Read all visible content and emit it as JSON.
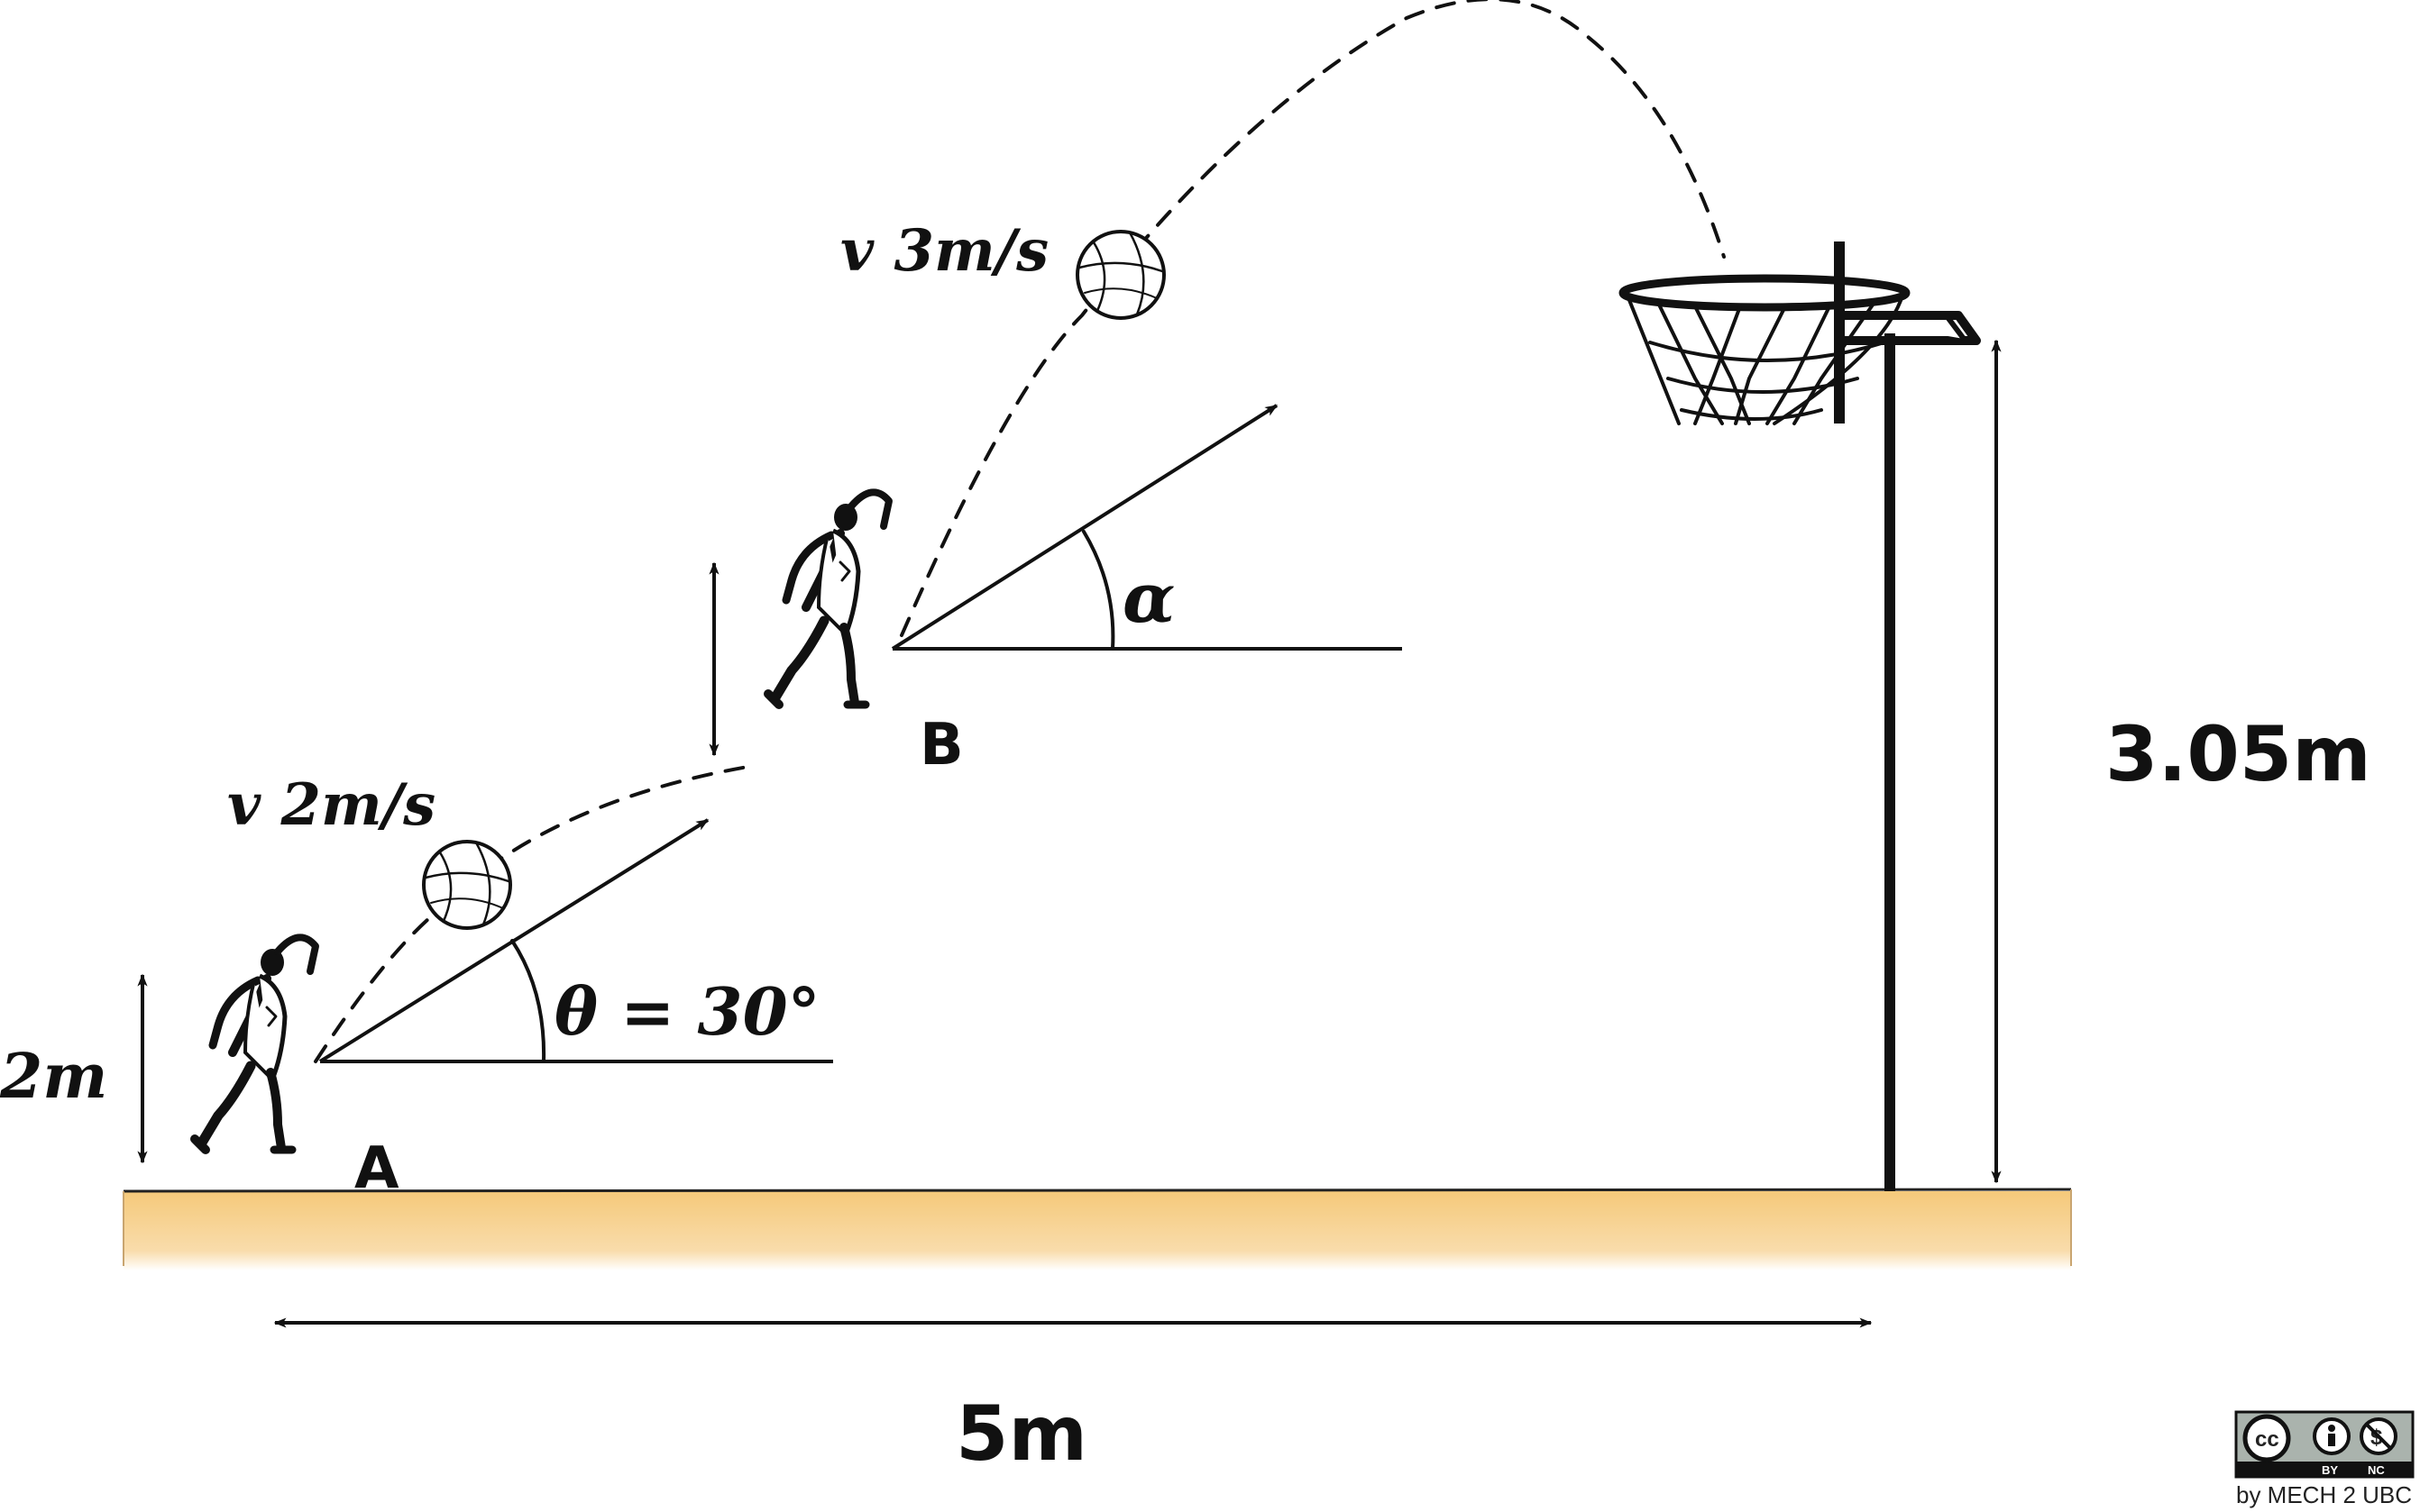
{
  "labels": {
    "height_a": "2m",
    "point_a": "A",
    "point_b": "B",
    "velocity_a": "v 2m/s",
    "velocity_b": "v 3m/s",
    "theta": "θ = 30°",
    "alpha": "α",
    "hoop_height": "3.05m",
    "distance": "5m"
  },
  "license": {
    "badge_cc": "cc",
    "badge_by": "BY",
    "badge_nc": "NC",
    "attribution": "by MECH 2 UBC"
  },
  "colors": {
    "floor": "#f5c97a",
    "ink": "#111111"
  }
}
